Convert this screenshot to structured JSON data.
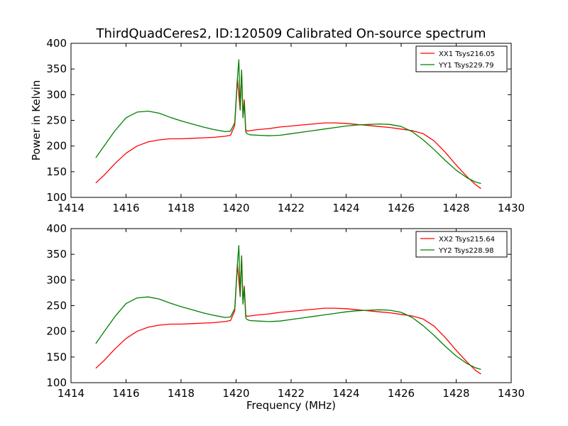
{
  "title": "ThirdQuadCeres2, ID:120509 Calibrated On-source spectrum",
  "chart_data": [
    {
      "type": "line",
      "title": "ThirdQuadCeres2, ID:120509 Calibrated On-source spectrum",
      "ylabel": "Power in Kelvin",
      "xlabel": "",
      "xlim": [
        1414,
        1430
      ],
      "ylim": [
        100,
        400
      ],
      "xticks": [
        "1414",
        "1416",
        "1418",
        "1420",
        "1422",
        "1424",
        "1426",
        "1428",
        "1430"
      ],
      "yticks": [
        "100",
        "150",
        "200",
        "250",
        "300",
        "350",
        "400"
      ],
      "legend_position": "top-right",
      "grid": false,
      "series": [
        {
          "name": "XX1 Tsys216.05",
          "color": "#ff0000",
          "x": [
            1414.9,
            1415.2,
            1415.6,
            1416.0,
            1416.4,
            1416.8,
            1417.2,
            1417.6,
            1418.0,
            1418.4,
            1418.8,
            1419.2,
            1419.6,
            1419.8,
            1419.95,
            1420.05,
            1420.1,
            1420.15,
            1420.2,
            1420.25,
            1420.3,
            1420.35,
            1420.4,
            1420.5,
            1420.8,
            1421.2,
            1421.6,
            1422.0,
            1422.4,
            1422.8,
            1423.2,
            1423.6,
            1424.0,
            1424.4,
            1424.8,
            1425.2,
            1425.6,
            1426.0,
            1426.4,
            1426.8,
            1427.2,
            1427.6,
            1428.0,
            1428.4,
            1428.7,
            1428.9
          ],
          "y": [
            128,
            143,
            166,
            186,
            200,
            208,
            212,
            214,
            214,
            215,
            216,
            217,
            219,
            221,
            240,
            330,
            300,
            270,
            345,
            260,
            290,
            232,
            229,
            230,
            232,
            234,
            237,
            239,
            241,
            243,
            245,
            245,
            244,
            242,
            240,
            238,
            236,
            233,
            230,
            224,
            210,
            188,
            163,
            140,
            125,
            117
          ]
        },
        {
          "name": "YY1 Tsys229.79",
          "color": "#008000",
          "x": [
            1414.9,
            1415.2,
            1415.6,
            1416.0,
            1416.4,
            1416.8,
            1417.2,
            1417.6,
            1418.0,
            1418.4,
            1418.8,
            1419.2,
            1419.6,
            1419.8,
            1419.95,
            1420.05,
            1420.1,
            1420.15,
            1420.2,
            1420.25,
            1420.3,
            1420.35,
            1420.4,
            1420.5,
            1420.8,
            1421.2,
            1421.6,
            1422.0,
            1422.4,
            1422.8,
            1423.2,
            1423.6,
            1424.0,
            1424.4,
            1424.8,
            1425.2,
            1425.6,
            1426.0,
            1426.4,
            1426.8,
            1427.2,
            1427.6,
            1428.0,
            1428.4,
            1428.7,
            1428.9
          ],
          "y": [
            177,
            200,
            230,
            255,
            266,
            268,
            264,
            256,
            249,
            243,
            237,
            232,
            228,
            229,
            245,
            333,
            368,
            270,
            348,
            255,
            285,
            227,
            224,
            222,
            221,
            220,
            221,
            224,
            227,
            230,
            233,
            236,
            239,
            241,
            242,
            243,
            242,
            238,
            228,
            212,
            193,
            172,
            153,
            138,
            130,
            127
          ]
        }
      ]
    },
    {
      "type": "line",
      "title": "",
      "ylabel": "",
      "xlabel": "Frequency (MHz)",
      "xlim": [
        1414,
        1430
      ],
      "ylim": [
        100,
        400
      ],
      "xticks": [
        "1414",
        "1416",
        "1418",
        "1420",
        "1422",
        "1424",
        "1426",
        "1428",
        "1430"
      ],
      "yticks": [
        "100",
        "150",
        "200",
        "250",
        "300",
        "350",
        "400"
      ],
      "legend_position": "top-right",
      "grid": false,
      "series": [
        {
          "name": "XX2 Tsys215.64",
          "color": "#ff0000",
          "x": [
            1414.9,
            1415.2,
            1415.6,
            1416.0,
            1416.4,
            1416.8,
            1417.2,
            1417.6,
            1418.0,
            1418.4,
            1418.8,
            1419.2,
            1419.6,
            1419.8,
            1419.95,
            1420.05,
            1420.1,
            1420.15,
            1420.2,
            1420.25,
            1420.3,
            1420.35,
            1420.4,
            1420.5,
            1420.8,
            1421.2,
            1421.6,
            1422.0,
            1422.4,
            1422.8,
            1423.2,
            1423.6,
            1424.0,
            1424.4,
            1424.8,
            1425.2,
            1425.6,
            1426.0,
            1426.4,
            1426.8,
            1427.2,
            1427.6,
            1428.0,
            1428.4,
            1428.7,
            1428.9
          ],
          "y": [
            128,
            143,
            166,
            186,
            200,
            208,
            212,
            214,
            214,
            215,
            216,
            217,
            219,
            221,
            240,
            330,
            300,
            268,
            347,
            258,
            288,
            232,
            229,
            230,
            232,
            234,
            237,
            239,
            241,
            243,
            245,
            245,
            244,
            242,
            240,
            238,
            236,
            233,
            230,
            224,
            210,
            188,
            163,
            140,
            124,
            117
          ]
        },
        {
          "name": "YY2 Tsys228.98",
          "color": "#008000",
          "x": [
            1414.9,
            1415.2,
            1415.6,
            1416.0,
            1416.4,
            1416.8,
            1417.2,
            1417.6,
            1418.0,
            1418.4,
            1418.8,
            1419.2,
            1419.6,
            1419.8,
            1419.95,
            1420.05,
            1420.1,
            1420.15,
            1420.2,
            1420.25,
            1420.3,
            1420.35,
            1420.4,
            1420.5,
            1420.8,
            1421.2,
            1421.6,
            1422.0,
            1422.4,
            1422.8,
            1423.2,
            1423.6,
            1424.0,
            1424.4,
            1424.8,
            1425.2,
            1425.6,
            1426.0,
            1426.4,
            1426.8,
            1427.2,
            1427.6,
            1428.0,
            1428.4,
            1428.7,
            1428.9
          ],
          "y": [
            176,
            199,
            229,
            254,
            265,
            267,
            263,
            255,
            248,
            242,
            236,
            231,
            227,
            228,
            244,
            332,
            367,
            268,
            346,
            253,
            284,
            226,
            223,
            221,
            220,
            219,
            220,
            223,
            226,
            229,
            232,
            235,
            238,
            240,
            241,
            242,
            241,
            237,
            227,
            211,
            192,
            171,
            152,
            137,
            129,
            126
          ]
        }
      ]
    }
  ]
}
